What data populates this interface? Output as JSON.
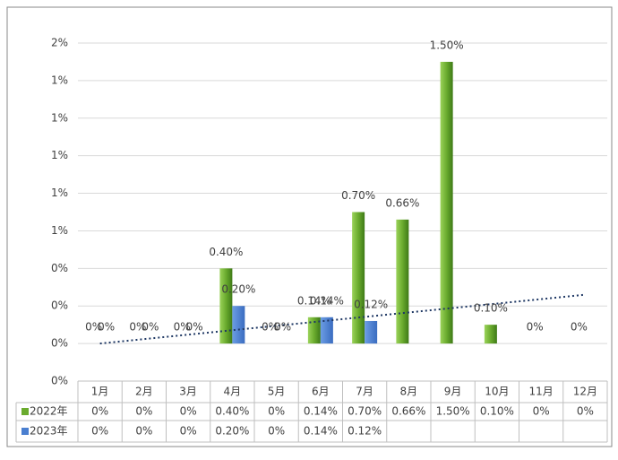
{
  "chart_data": {
    "type": "bar",
    "categories": [
      "1月",
      "2月",
      "3月",
      "4月",
      "5月",
      "6月",
      "7月",
      "8月",
      "9月",
      "10月",
      "11月",
      "12月"
    ],
    "series": [
      {
        "name": "2022年",
        "color": "#6aab2e",
        "values": [
          0,
          0,
          0,
          0.4,
          0,
          0.14,
          0.7,
          0.66,
          1.5,
          0.1,
          0,
          0
        ],
        "value_labels": [
          "0%",
          "0%",
          "0%",
          "0.40%",
          "0%",
          "0.14%",
          "0.70%",
          "0.66%",
          "1.50%",
          "0.10%",
          "0%",
          "0%"
        ]
      },
      {
        "name": "2023年",
        "color": "#4a7fd0",
        "values": [
          0,
          0,
          0,
          0.2,
          0,
          0.14,
          0.12,
          null,
          null,
          null,
          null,
          null
        ],
        "value_labels": [
          "0%",
          "0%",
          "0%",
          "0.20%",
          "0%",
          "0.14%",
          "0.12%",
          null,
          null,
          null,
          null,
          null
        ]
      }
    ],
    "trendline": {
      "color": "#1f3864",
      "values": [
        0,
        0.26
      ]
    },
    "ylim": [
      -0.2,
      1.6
    ],
    "yticks": [
      {
        "value": -0.2,
        "label": "0%"
      },
      {
        "value": 0,
        "label": "0%"
      },
      {
        "value": 0.2,
        "label": "0%"
      },
      {
        "value": 0.4,
        "label": "0%"
      },
      {
        "value": 0.6,
        "label": "1%"
      },
      {
        "value": 0.8,
        "label": "1%"
      },
      {
        "value": 1.0,
        "label": "1%"
      },
      {
        "value": 1.2,
        "label": "1%"
      },
      {
        "value": 1.4,
        "label": "1%"
      },
      {
        "value": 1.6,
        "label": "2%"
      }
    ],
    "grid": true
  }
}
